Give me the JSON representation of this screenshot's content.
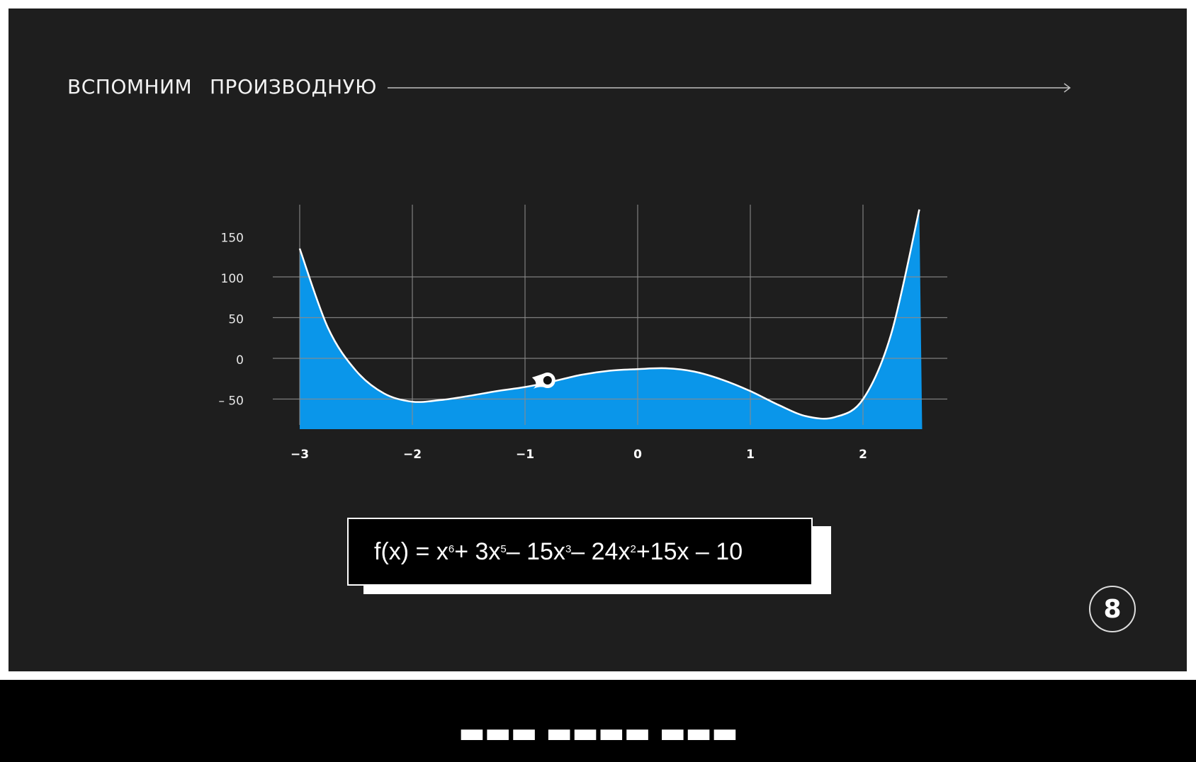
{
  "header": {
    "word1": "ВСПОМНИМ",
    "word2": "ПРОИЗВОДНУЮ"
  },
  "colors": {
    "background": "#1e1e1e",
    "fill": "#0a96ea",
    "curve": "#ffffff",
    "grid": "#8a8a8a"
  },
  "chart_data": {
    "type": "area",
    "title": "",
    "xlabel": "",
    "ylabel": "",
    "x_ticks": [
      "−3",
      "−2",
      "−1",
      "0",
      "1",
      "2"
    ],
    "x_tick_values": [
      -3,
      -2,
      -1,
      0,
      1,
      2
    ],
    "y_ticks": [
      "150",
      "100",
      "50",
      "0",
      "– 50"
    ],
    "y_tick_values": [
      150,
      100,
      50,
      0,
      -50
    ],
    "xlim": [
      -3,
      2.5
    ],
    "ylim": [
      -82,
      190
    ],
    "grid": true,
    "series": [
      {
        "x": [
          -3,
          -2.75,
          -2.5,
          -2.25,
          -2,
          -1.75,
          -1.5,
          -1.25,
          -1,
          -0.75,
          -0.5,
          -0.25,
          0,
          0.25,
          0.5,
          0.75,
          1,
          1.25,
          1.5,
          1.75,
          2,
          2.25,
          2.5
        ],
        "y": [
          140,
          43,
          -10,
          -38,
          -48,
          -46,
          -41,
          -35,
          -30,
          -23,
          -15,
          -10,
          -8,
          -7,
          -11,
          -21,
          -35,
          -52,
          -66,
          -67,
          -45,
          35,
          188
        ]
      }
    ],
    "marker": {
      "x": -0.8,
      "y": -27
    }
  },
  "formula": {
    "prefix": "f(x) = x",
    "exp1": "6",
    "part2": " + 3x",
    "exp2": "5",
    "part3": " – 15x",
    "exp3": "3",
    "part4": " – 24x",
    "exp4": "2",
    "part5": " +15x – 10"
  },
  "page_number": "8"
}
